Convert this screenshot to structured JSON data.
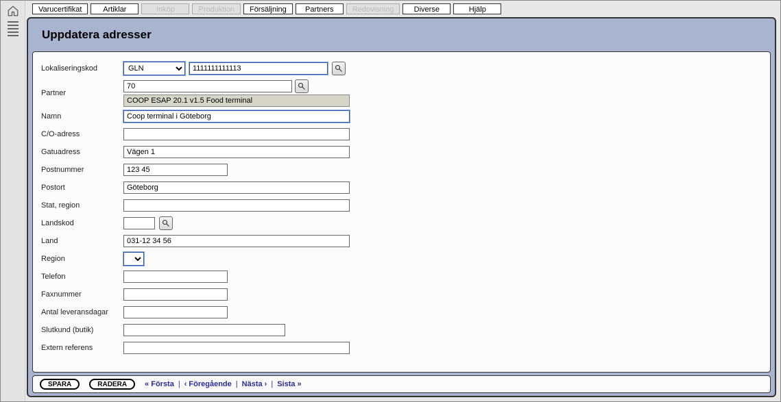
{
  "menu": {
    "items": [
      {
        "label": "Varucertifikat",
        "disabled": false
      },
      {
        "label": "Artiklar",
        "disabled": false
      },
      {
        "label": "Inköp",
        "disabled": true
      },
      {
        "label": "Produktion",
        "disabled": true
      },
      {
        "label": "Försäljning",
        "disabled": false
      },
      {
        "label": "Partners",
        "disabled": false
      },
      {
        "label": "Redovisning",
        "disabled": true
      },
      {
        "label": "Diverse",
        "disabled": false
      },
      {
        "label": "Hjälp",
        "disabled": false
      }
    ]
  },
  "page": {
    "title": "Uppdatera adresser"
  },
  "form": {
    "labels": {
      "lokaliseringskod": "Lokaliseringskod",
      "partner": "Partner",
      "namn": "Namn",
      "coadress": "C/O-adress",
      "gatuadress": "Gatuadress",
      "postnummer": "Postnummer",
      "postort": "Postort",
      "stat_region": "Stat, region",
      "landskod": "Landskod",
      "land": "Land",
      "region": "Region",
      "telefon": "Telefon",
      "faxnummer": "Faxnummer",
      "antal_leveransdagar": "Antal leveransdagar",
      "slutkund": "Slutkund (butik)",
      "extern_referens": "Extern referens"
    },
    "values": {
      "lokaliseringskod_type": "GLN",
      "lokaliseringskod_num": "1111111111113",
      "partner_code": "70",
      "partner_name": "COOP ESAP 20.1 v1.5 Food terminal",
      "namn": "Coop terminal i Göteborg",
      "coadress": "",
      "gatuadress": "Vägen 1",
      "postnummer": "123 45",
      "postort": "Göteborg",
      "stat_region": "",
      "landskod": "",
      "land": "031-12 34 56",
      "region": "",
      "telefon": "",
      "faxnummer": "",
      "antal_leveransdagar": "",
      "slutkund": "",
      "extern_referens": ""
    },
    "widths": {
      "sel_small": "90px",
      "code_input": "202px",
      "partner_input": "246px",
      "wide_input": "330px",
      "post_input": "152px",
      "small_input": "46px"
    }
  },
  "buttons": {
    "save": "SPARA",
    "delete": "RADERA"
  },
  "nav": {
    "first": "« Första",
    "prev": "‹ Föregående",
    "next": "Nästa ›",
    "last": "Sista »",
    "sep": "|"
  },
  "colors": {
    "panel_bg": "#a8b4d0",
    "form_bg": "#fcfcfc",
    "link": "#2a2a9a"
  }
}
